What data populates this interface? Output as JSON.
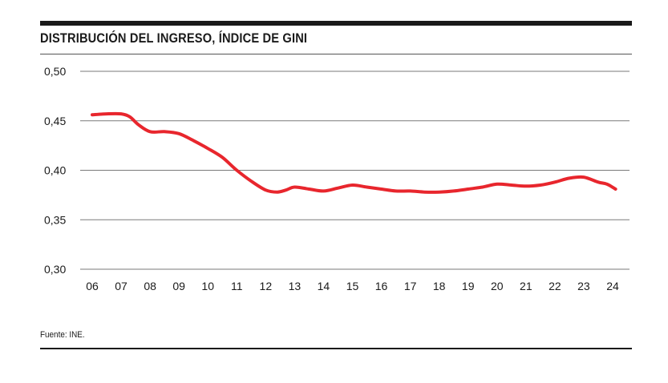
{
  "chart_data": {
    "type": "line",
    "title": "DISTRIBUCIÓN DEL INGRESO, ÍNDICE DE GINI",
    "xlabel": "",
    "ylabel": "",
    "ylim": [
      0.3,
      0.5
    ],
    "y_ticks": [
      "0,50",
      "0,45",
      "0,40",
      "0,35",
      "0,30"
    ],
    "y_tick_values": [
      0.5,
      0.45,
      0.4,
      0.35,
      0.3
    ],
    "x_ticks": [
      "06",
      "07",
      "08",
      "09",
      "10",
      "11",
      "12",
      "13",
      "14",
      "15",
      "16",
      "17",
      "18",
      "19",
      "20",
      "21",
      "22",
      "23",
      "24"
    ],
    "grid": true,
    "series": [
      {
        "color": "#e8262d",
        "points": [
          {
            "x": 2006.0,
            "y": 0.456
          },
          {
            "x": 2006.5,
            "y": 0.457
          },
          {
            "x": 2007.0,
            "y": 0.457
          },
          {
            "x": 2007.3,
            "y": 0.454
          },
          {
            "x": 2007.6,
            "y": 0.446
          },
          {
            "x": 2008.0,
            "y": 0.439
          },
          {
            "x": 2008.5,
            "y": 0.439
          },
          {
            "x": 2009.0,
            "y": 0.437
          },
          {
            "x": 2009.5,
            "y": 0.43
          },
          {
            "x": 2010.0,
            "y": 0.422
          },
          {
            "x": 2010.5,
            "y": 0.413
          },
          {
            "x": 2011.0,
            "y": 0.4
          },
          {
            "x": 2011.5,
            "y": 0.389
          },
          {
            "x": 2012.0,
            "y": 0.38
          },
          {
            "x": 2012.4,
            "y": 0.378
          },
          {
            "x": 2012.7,
            "y": 0.38
          },
          {
            "x": 2013.0,
            "y": 0.383
          },
          {
            "x": 2013.5,
            "y": 0.381
          },
          {
            "x": 2014.0,
            "y": 0.379
          },
          {
            "x": 2014.5,
            "y": 0.382
          },
          {
            "x": 2015.0,
            "y": 0.385
          },
          {
            "x": 2015.5,
            "y": 0.383
          },
          {
            "x": 2016.0,
            "y": 0.381
          },
          {
            "x": 2016.5,
            "y": 0.379
          },
          {
            "x": 2017.0,
            "y": 0.379
          },
          {
            "x": 2017.5,
            "y": 0.378
          },
          {
            "x": 2018.0,
            "y": 0.378
          },
          {
            "x": 2018.5,
            "y": 0.379
          },
          {
            "x": 2019.0,
            "y": 0.381
          },
          {
            "x": 2019.5,
            "y": 0.383
          },
          {
            "x": 2020.0,
            "y": 0.386
          },
          {
            "x": 2020.5,
            "y": 0.385
          },
          {
            "x": 2021.0,
            "y": 0.384
          },
          {
            "x": 2021.5,
            "y": 0.385
          },
          {
            "x": 2022.0,
            "y": 0.388
          },
          {
            "x": 2022.5,
            "y": 0.392
          },
          {
            "x": 2023.0,
            "y": 0.393
          },
          {
            "x": 2023.5,
            "y": 0.388
          },
          {
            "x": 2023.8,
            "y": 0.386
          },
          {
            "x": 2024.1,
            "y": 0.381
          }
        ]
      }
    ]
  },
  "source_text": "Fuente: INE."
}
